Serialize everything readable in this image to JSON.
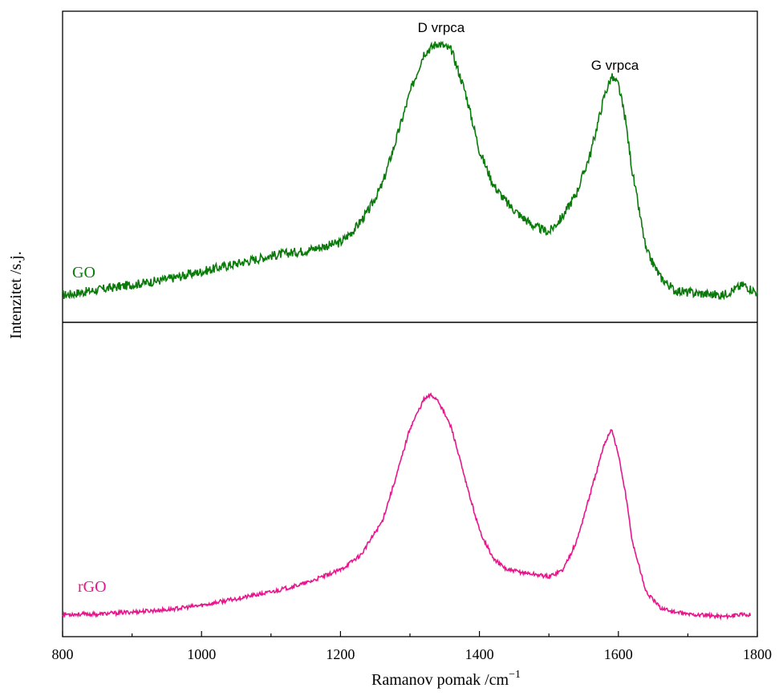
{
  "chart_data": {
    "type": "line",
    "title": "",
    "xlabel": "Ramanov pomak /cm",
    "xlabel_superscript": "−1",
    "ylabel": "Intenzitet /s.j.",
    "xlim": [
      800,
      1800
    ],
    "x_ticks": [
      800,
      1000,
      1200,
      1400,
      1600,
      1800
    ],
    "x_tick_labels": [
      "800",
      "1000",
      "1200",
      "1400",
      "1600",
      "1800"
    ],
    "y_ticks_shown": false,
    "grid": false,
    "legend": "none",
    "panels": [
      {
        "name": "GO",
        "color": "#0a7a0a",
        "label_position": "left",
        "ylim": [
          0,
          1.1
        ],
        "x": [
          800,
          850,
          900,
          950,
          1000,
          1050,
          1100,
          1150,
          1200,
          1220,
          1240,
          1260,
          1280,
          1300,
          1320,
          1340,
          1360,
          1380,
          1400,
          1420,
          1440,
          1460,
          1480,
          1500,
          1520,
          1540,
          1560,
          1580,
          1590,
          1600,
          1610,
          1620,
          1640,
          1660,
          1680,
          1700,
          1750,
          1780,
          1800
        ],
        "values": [
          0.03,
          0.05,
          0.07,
          0.09,
          0.12,
          0.15,
          0.18,
          0.2,
          0.23,
          0.28,
          0.35,
          0.45,
          0.62,
          0.8,
          0.95,
          0.99,
          0.96,
          0.8,
          0.58,
          0.45,
          0.38,
          0.33,
          0.29,
          0.27,
          0.33,
          0.42,
          0.57,
          0.79,
          0.86,
          0.83,
          0.7,
          0.5,
          0.2,
          0.1,
          0.05,
          0.04,
          0.03,
          0.07,
          0.04
        ]
      },
      {
        "name": "rGO",
        "color": "#e8158c",
        "label_position": "left",
        "ylim": [
          0,
          1.1
        ],
        "x": [
          800,
          850,
          900,
          950,
          1000,
          1050,
          1100,
          1150,
          1200,
          1230,
          1260,
          1280,
          1300,
          1320,
          1330,
          1340,
          1360,
          1380,
          1400,
          1420,
          1440,
          1460,
          1480,
          1500,
          1520,
          1540,
          1560,
          1580,
          1590,
          1600,
          1610,
          1620,
          1640,
          1660,
          1680,
          1700,
          1750,
          1790
        ],
        "values": [
          0.0,
          0.0,
          0.01,
          0.02,
          0.04,
          0.07,
          0.1,
          0.14,
          0.2,
          0.27,
          0.42,
          0.62,
          0.84,
          0.97,
          0.99,
          0.97,
          0.84,
          0.6,
          0.38,
          0.25,
          0.2,
          0.19,
          0.18,
          0.17,
          0.2,
          0.33,
          0.55,
          0.77,
          0.84,
          0.72,
          0.55,
          0.33,
          0.1,
          0.03,
          0.01,
          0.0,
          -0.01,
          0.0
        ]
      }
    ],
    "annotations": [
      {
        "text": "D vrpca",
        "x": 1345,
        "panel": "GO"
      },
      {
        "text": "G vrpca",
        "x": 1595,
        "panel": "GO"
      }
    ]
  }
}
